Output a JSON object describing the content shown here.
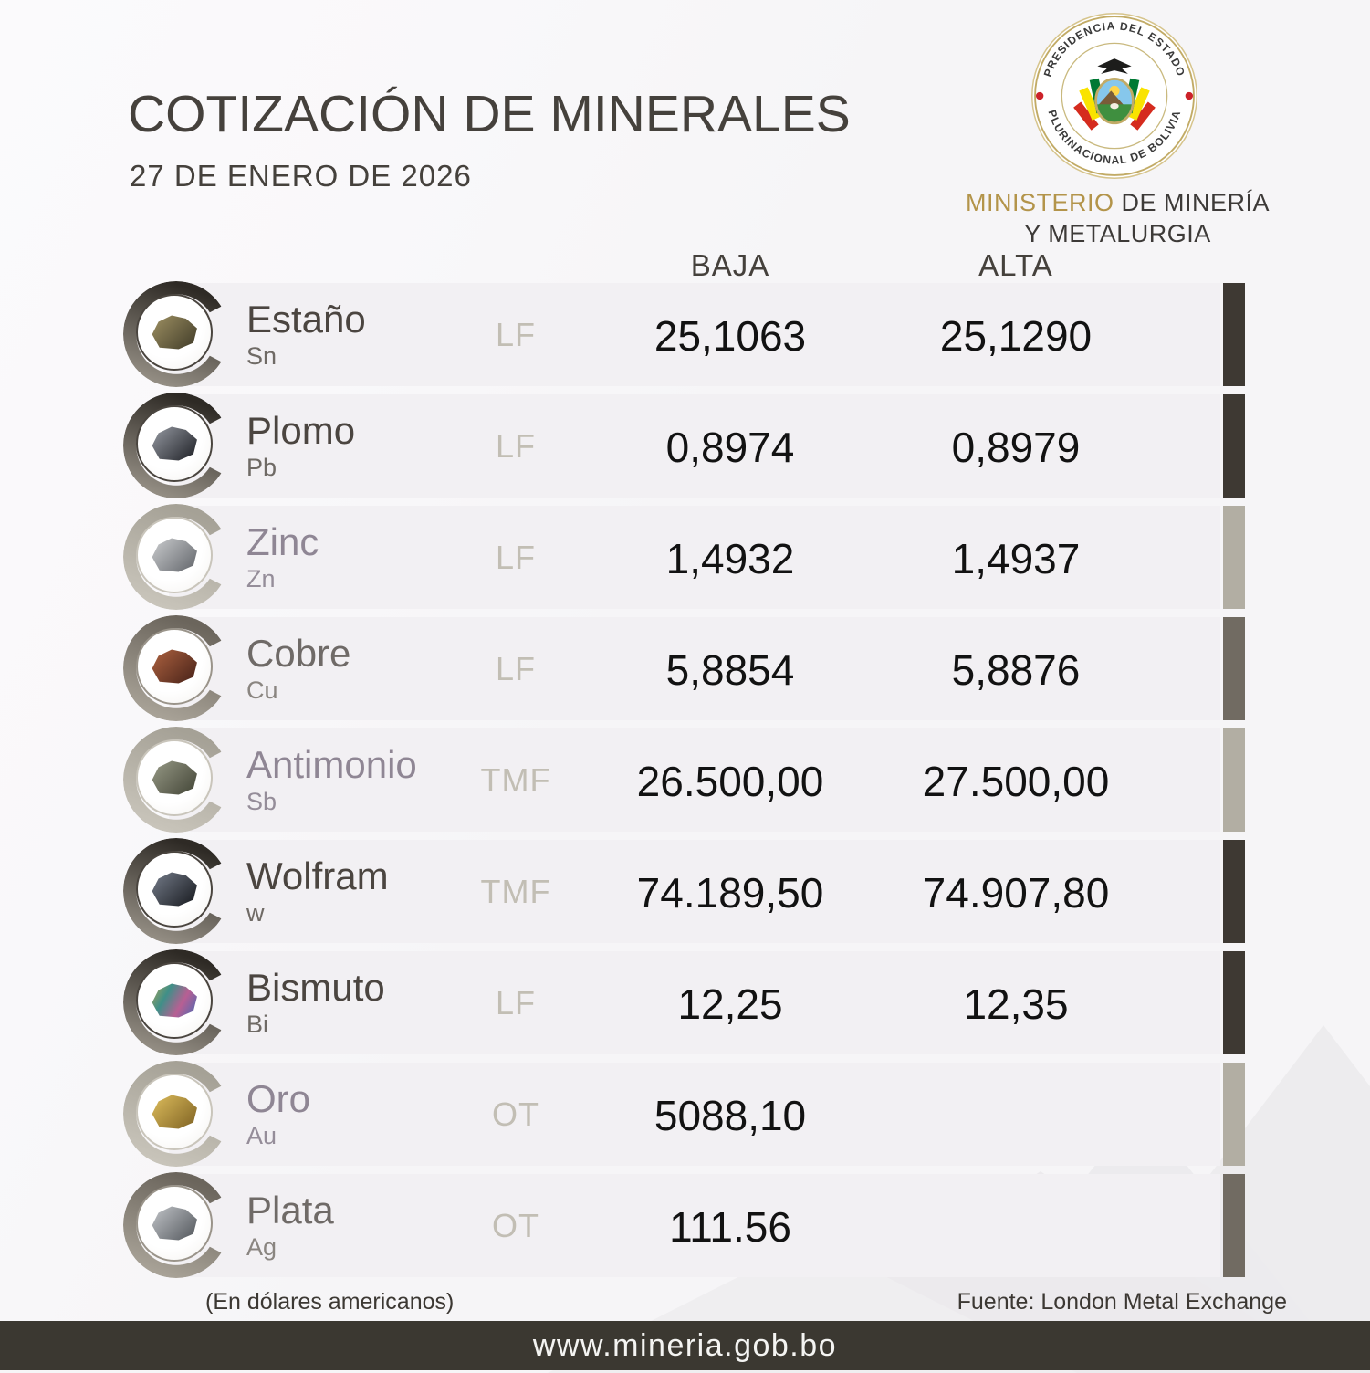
{
  "header": {
    "title": "COTIZACIÓN DE MINERALES",
    "date": "27 DE ENERO DE 2026",
    "ministry": {
      "word_gold": "MINISTERIO",
      "word_rest": " DE MINERÍA",
      "line2": "Y METALURGIA"
    },
    "seal": {
      "top_text": "PRESIDENCIA DEL ESTADO",
      "bottom_text": "PLURINACIONAL DE BOLIVIA"
    }
  },
  "columns": {
    "baja": "BAJA",
    "alta": "ALTA"
  },
  "table": {
    "rows": [
      {
        "name": "Estaño",
        "symbol": "Sn",
        "unit": "LF",
        "baja": "25,1063",
        "alta": "25,1290",
        "tone": "dark",
        "name_tone": "dark",
        "rock": [
          "#9a8d60",
          "#4b452f"
        ]
      },
      {
        "name": "Plomo",
        "symbol": "Pb",
        "unit": "LF",
        "baja": "0,8974",
        "alta": "0,8979",
        "tone": "dark",
        "name_tone": "dark",
        "rock": [
          "#90949c",
          "#2c2e34"
        ]
      },
      {
        "name": "Zinc",
        "symbol": "Zn",
        "unit": "LF",
        "baja": "1,4932",
        "alta": "1,4937",
        "tone": "light",
        "name_tone": "faded",
        "rock": [
          "#c6c8ca",
          "#6e7176"
        ]
      },
      {
        "name": "Cobre",
        "symbol": "Cu",
        "unit": "LF",
        "baja": "5,8854",
        "alta": "5,8876",
        "tone": "medium",
        "name_tone": "mid",
        "rock": [
          "#a85f3e",
          "#53291d"
        ]
      },
      {
        "name": "Antimonio",
        "symbol": "Sb",
        "unit": "TMF",
        "baja": "26.500,00",
        "alta": "27.500,00",
        "tone": "light",
        "name_tone": "faded",
        "rock": [
          "#939582",
          "#4c4f40"
        ]
      },
      {
        "name": "Wolfram",
        "symbol": "w",
        "unit": "TMF",
        "baja": "74.189,50",
        "alta": "74.907,80",
        "tone": "dark",
        "name_tone": "dark",
        "rock": [
          "#707784",
          "#22252b"
        ]
      },
      {
        "name": "Bismuto",
        "symbol": "Bi",
        "unit": "LF",
        "baja": "12,25",
        "alta": "12,35",
        "tone": "dark",
        "name_tone": "dark",
        "rock": [
          "#c9a84c",
          "#3f8f88",
          "#b85f93",
          "#5568b0"
        ]
      },
      {
        "name": "Oro",
        "symbol": "Au",
        "unit": "OT",
        "baja": "5088,10",
        "alta": "",
        "tone": "light",
        "name_tone": "faded",
        "rock": [
          "#d8b859",
          "#8a6d2a"
        ]
      },
      {
        "name": "Plata",
        "symbol": "Ag",
        "unit": "OT",
        "baja": "111.56",
        "alta": "",
        "tone": "medium",
        "name_tone": "mid",
        "rock": [
          "#bcbfc3",
          "#5f6368"
        ]
      }
    ]
  },
  "tones": {
    "dark": {
      "c1": "#2e2a25",
      "c2": "#938d83",
      "bar": "#3e3933",
      "ring": "#4a453f"
    },
    "medium": {
      "c1": "#6b655c",
      "c2": "#a8a297",
      "bar": "#716b62",
      "ring": "#9a948a"
    },
    "light": {
      "c1": "#a5a196",
      "c2": "#c8c4ba",
      "bar": "#b2aea3",
      "ring": "#c9c5bb"
    }
  },
  "name_colors": {
    "dark": "#4b4540",
    "mid": "#6f6a67",
    "faded": "#8f8694"
  },
  "sym_colors": {
    "dark": "#6f6a65",
    "mid": "#8a8580",
    "faded": "#958d99"
  },
  "footer": {
    "note": "(En dólares americanos)",
    "source": "Fuente: London Metal Exchange",
    "website": "www.mineria.gob.bo"
  },
  "colors": {
    "page_bg": "#f6f5f7",
    "row_bg": "#f2f0f3",
    "title": "#45413c",
    "gold": "#b3944a",
    "value_ink": "#121212",
    "unit": "#c2beb4",
    "footer_bar": "#3b3831",
    "seal_gold": "#c2ab66",
    "seal_red": "#cc2229"
  }
}
